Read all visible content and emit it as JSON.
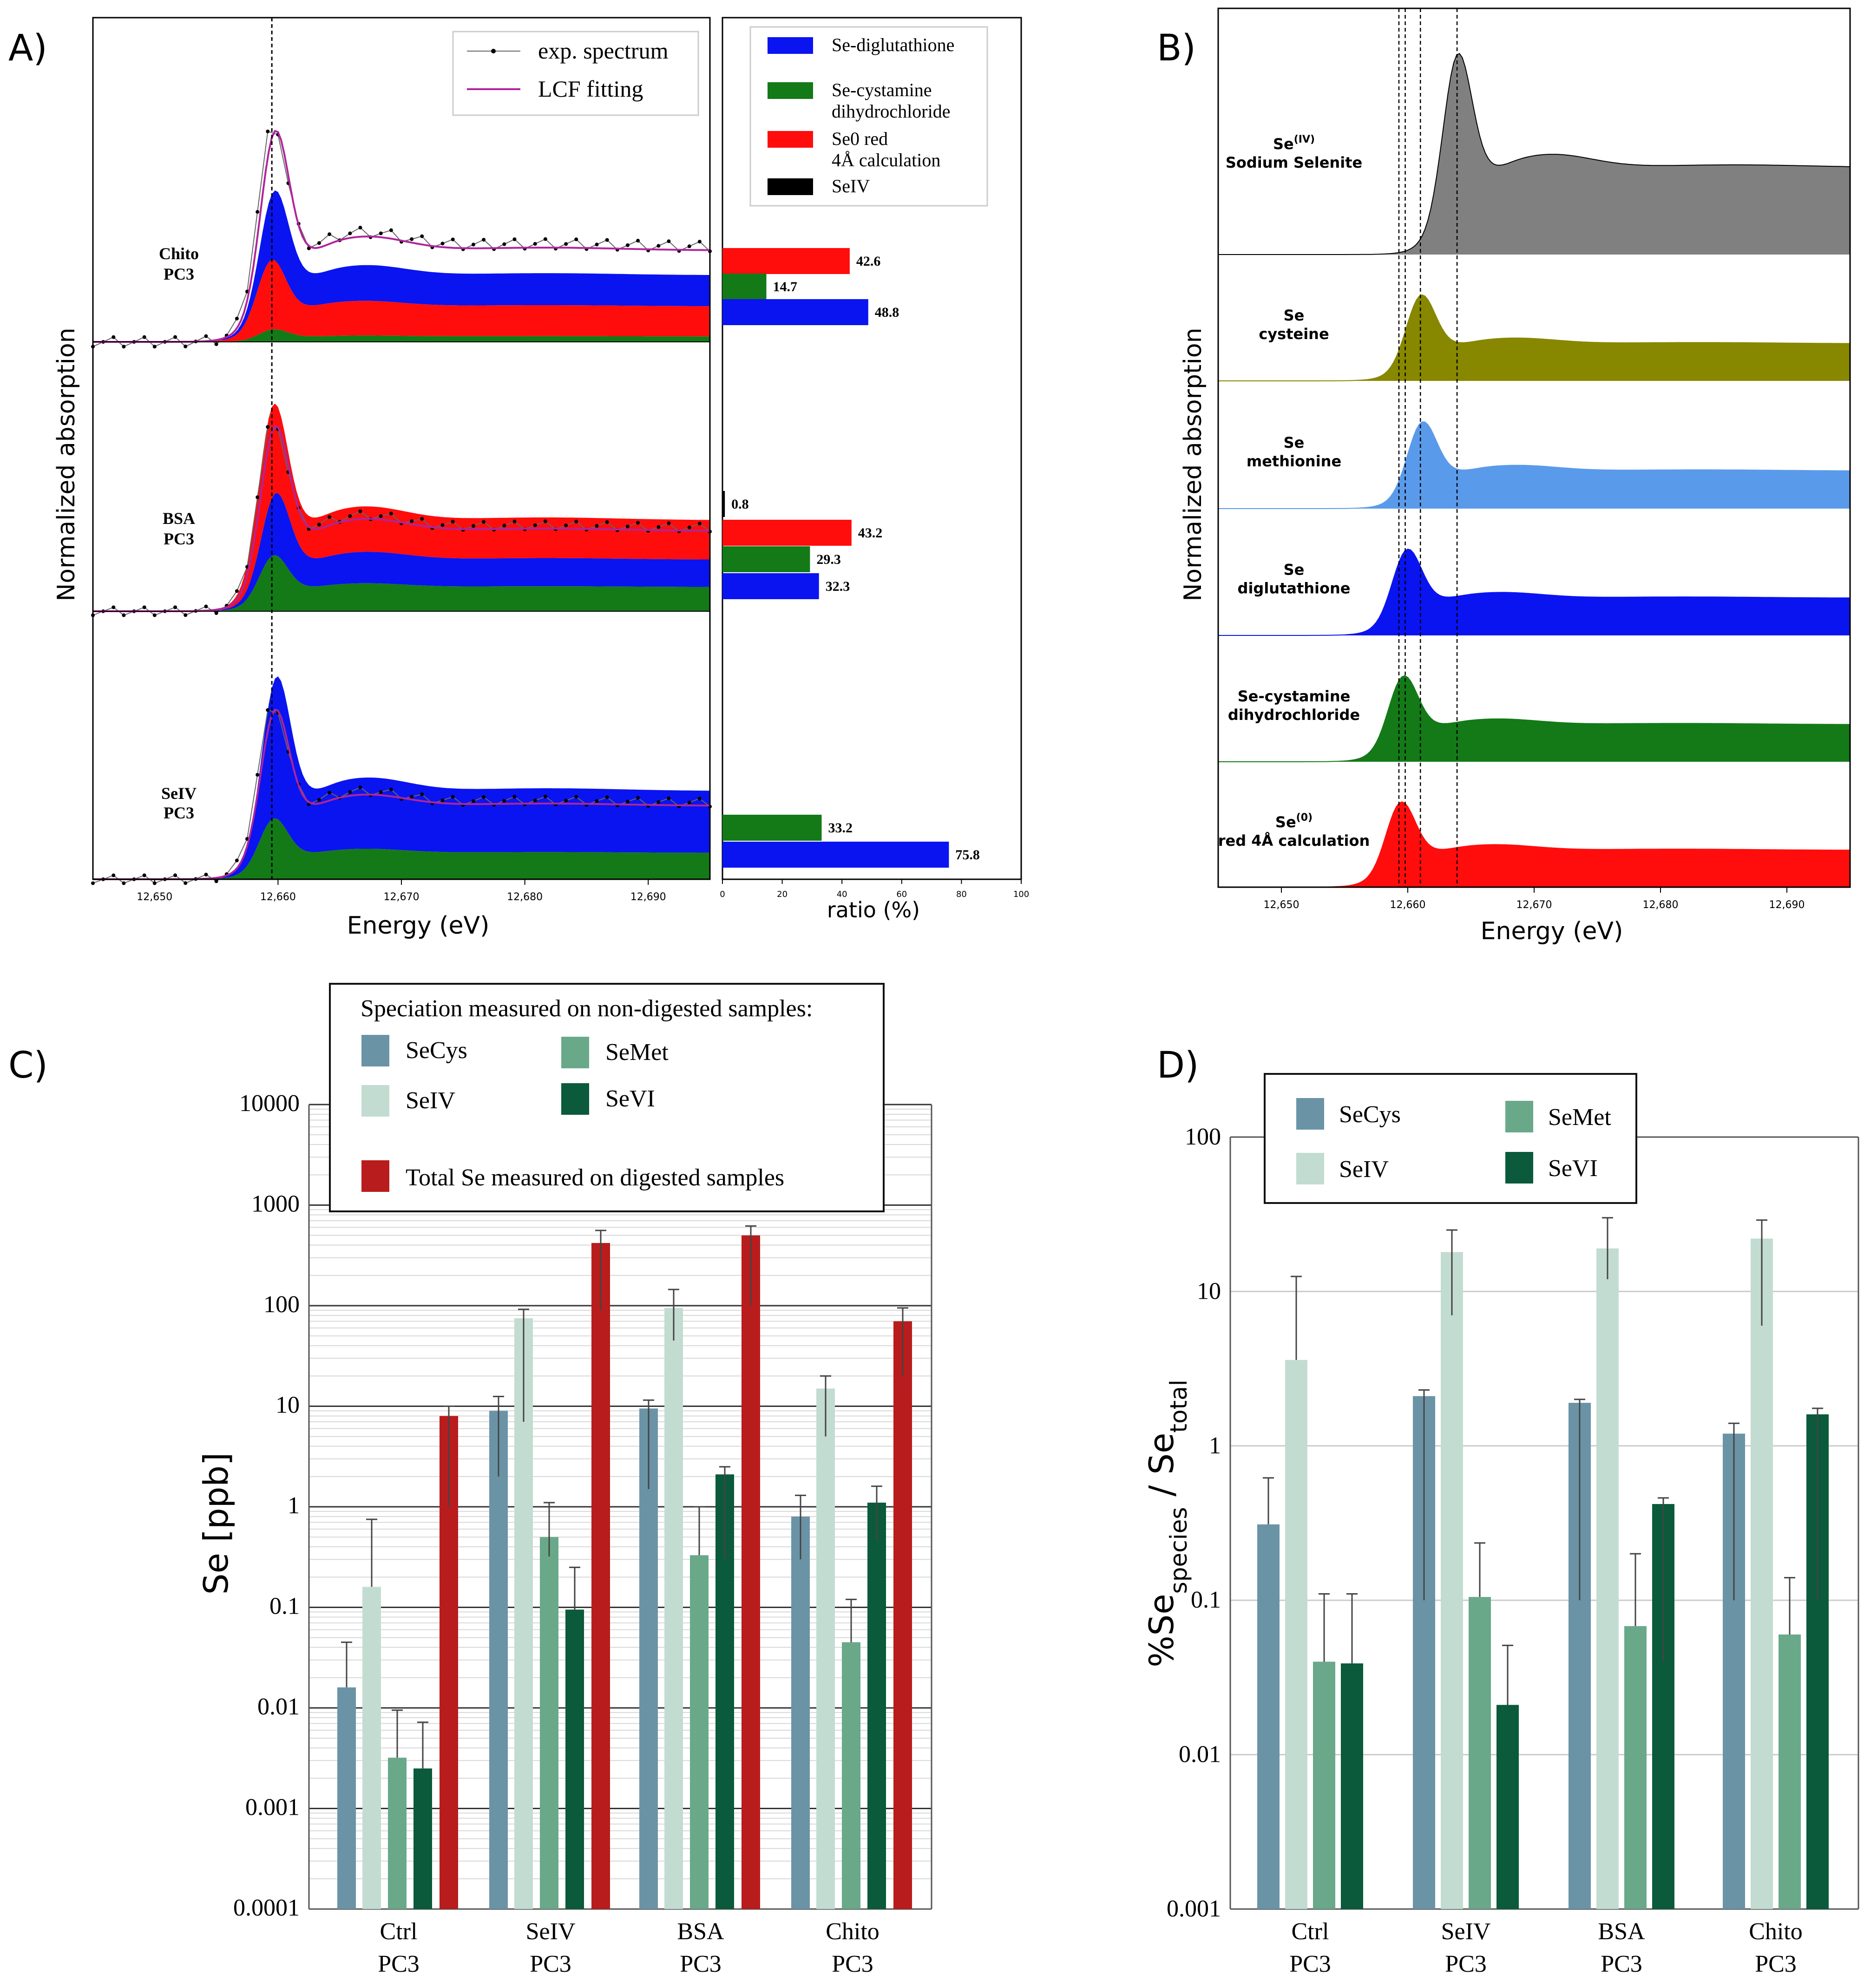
{
  "colors": {
    "blue": "#0a14f0",
    "green": "#137a17",
    "red": "#ff0d0d",
    "black": "#000000",
    "magenta": "#b0249a",
    "gray": "#808080",
    "olive": "#878700",
    "lightblue": "#5a9aea",
    "secys": "#6b93a6",
    "seiv": "#c3dcd2",
    "semet": "#69a98a",
    "sevi": "#0a5a3b",
    "total": "#b81c1c"
  },
  "chart_data": [
    {
      "panel": "A",
      "panel_label": "A)",
      "type": "area",
      "title": "",
      "xlabel": "Energy (eV)",
      "ylabel": "Normalized absorption",
      "xlim": [
        12645,
        12695
      ],
      "x_ticks": [
        12650,
        12660,
        12670,
        12680,
        12690
      ],
      "x_tick_labels": [
        "12,650",
        "12,660",
        "12,670",
        "12,680",
        "12,690"
      ],
      "vline": 12659.5,
      "legend": [
        "exp. spectrum",
        "LCF fitting"
      ],
      "samples": [
        {
          "name": "Chito",
          "name2": "PC3",
          "components": [
            "green",
            "red",
            "blue"
          ]
        },
        {
          "name": "BSA",
          "name2": "PC3",
          "components": [
            "green",
            "blue",
            "red"
          ]
        },
        {
          "name": "SeIV",
          "name2": "PC3",
          "components": [
            "green",
            "blue"
          ]
        }
      ]
    },
    {
      "panel": "A-ratio",
      "type": "bar",
      "orientation": "horizontal",
      "xlabel": "ratio (%)",
      "xlim": [
        0,
        100
      ],
      "x_ticks": [
        0,
        20,
        40,
        60,
        80,
        100
      ],
      "x_tick_labels": [
        "0",
        "20",
        "40",
        "60",
        "80",
        "100"
      ],
      "series": [
        {
          "name": "Se-diglutathione",
          "name2": "",
          "key": "blue"
        },
        {
          "name": "Se-cystamine",
          "name2": "dihydrochloride",
          "key": "green"
        },
        {
          "name": "Se0 red",
          "name2": "4Å calculation",
          "key": "red"
        },
        {
          "name": "SeIV",
          "name2": "",
          "key": "black"
        }
      ],
      "groups": [
        {
          "sample": "Chito PC3",
          "bars": [
            {
              "key": "red",
              "value": 42.6,
              "label": "42.6"
            },
            {
              "key": "green",
              "value": 14.7,
              "label": "14.7"
            },
            {
              "key": "blue",
              "value": 48.8,
              "label": "48.8"
            }
          ]
        },
        {
          "sample": "BSA PC3",
          "bars": [
            {
              "key": "black",
              "value": 0.8,
              "label": "0.8"
            },
            {
              "key": "red",
              "value": 43.2,
              "label": "43.2"
            },
            {
              "key": "green",
              "value": 29.3,
              "label": "29.3"
            },
            {
              "key": "blue",
              "value": 32.3,
              "label": "32.3"
            }
          ]
        },
        {
          "sample": "SeIV PC3",
          "bars": [
            {
              "key": "green",
              "value": 33.2,
              "label": "33.2"
            },
            {
              "key": "blue",
              "value": 75.8,
              "label": "75.8"
            }
          ]
        }
      ]
    },
    {
      "panel": "B",
      "panel_label": "B)",
      "type": "area",
      "xlabel": "Energy (eV)",
      "ylabel": "Normalized absorption",
      "xlim": [
        12645,
        12695
      ],
      "x_ticks": [
        12650,
        12660,
        12670,
        12680,
        12690
      ],
      "x_tick_labels": [
        "12,650",
        "12,660",
        "12,670",
        "12,680",
        "12,690"
      ],
      "vlines": [
        12659.3,
        12659.8,
        12661.0,
        12663.9
      ],
      "references": [
        {
          "name": "Se",
          "sup": "(IV)",
          "name2": "Sodium Selenite",
          "color": "gray",
          "edge": 12663.9
        },
        {
          "name": "Se",
          "sup": "",
          "name2": "cysteine",
          "color": "olive",
          "edge": 12661.0
        },
        {
          "name": "Se",
          "sup": "",
          "name2": "methionine",
          "color": "lightblue",
          "edge": 12661.1
        },
        {
          "name": "Se",
          "sup": "",
          "name2": "diglutathione",
          "color": "blue",
          "edge": 12659.9
        },
        {
          "name": "Se-cystamine",
          "sup": "",
          "name2": "dihydrochloride",
          "color": "green",
          "edge": 12659.6
        },
        {
          "name": "Se",
          "sup": "(0)",
          "name2": "red 4Å calculation",
          "color": "red",
          "edge": 12659.4
        }
      ]
    },
    {
      "panel": "C",
      "panel_label": "C)",
      "type": "bar",
      "scale": "log",
      "ylabel": "Se [ppb]",
      "ylim": [
        0.0001,
        10000
      ],
      "y_ticks": [
        0.0001,
        0.001,
        0.01,
        0.1,
        1,
        10,
        100,
        1000,
        10000
      ],
      "y_tick_labels": [
        "0.0001",
        "0.001",
        "0.01",
        "0.1",
        "1",
        "10",
        "100",
        "1000",
        "10000"
      ],
      "legend_title": "Speciation measured on non-digested samples:",
      "legend_extra": "Total Se measured on digested samples",
      "categories": [
        [
          "Ctrl",
          "PC3"
        ],
        [
          "SeIV",
          "PC3"
        ],
        [
          "BSA",
          "PC3"
        ],
        [
          "Chito",
          "PC3"
        ]
      ],
      "series": [
        {
          "name": "SeCys",
          "key": "secys",
          "values": [
            0.016,
            9,
            9.5,
            0.8
          ],
          "err_hi": [
            0.045,
            12.5,
            11.5,
            1.3
          ],
          "err_lo": [
            0.016,
            7,
            8,
            0.5
          ]
        },
        {
          "name": "SeIV",
          "key": "seiv",
          "values": [
            0.16,
            75,
            95,
            15
          ],
          "err_hi": [
            0.75,
            92,
            145,
            20
          ],
          "err_lo": [
            0.16,
            68,
            50,
            10
          ]
        },
        {
          "name": "SeMet",
          "key": "semet",
          "values": [
            0.0032,
            0.5,
            0.33,
            0.045
          ],
          "err_hi": [
            0.0095,
            1.1,
            1.0,
            0.12
          ],
          "err_lo": [
            0.0032,
            0.18,
            0.33,
            0.045
          ]
        },
        {
          "name": "SeVI",
          "key": "sevi",
          "values": [
            0.0025,
            0.095,
            2.1,
            1.1
          ],
          "err_hi": [
            0.0072,
            0.25,
            2.5,
            1.6
          ],
          "err_lo": [
            0.0025,
            0.095,
            1.8,
            0.65
          ]
        },
        {
          "name": "Total",
          "key": "total",
          "values": [
            8,
            420,
            500,
            70
          ],
          "err_hi": [
            10,
            560,
            620,
            95
          ],
          "err_lo": [
            7,
            330,
            400,
            50
          ]
        }
      ]
    },
    {
      "panel": "D",
      "panel_label": "D)",
      "type": "bar",
      "scale": "log",
      "ylim": [
        0.001,
        100
      ],
      "y_ticks": [
        0.001,
        0.01,
        0.1,
        1,
        10,
        100
      ],
      "y_tick_labels": [
        "0.001",
        "0.01",
        "0.1",
        "1",
        "10",
        "100"
      ],
      "categories": [
        [
          "Ctrl",
          "PC3"
        ],
        [
          "SeIV",
          "PC3"
        ],
        [
          "BSA",
          "PC3"
        ],
        [
          "Chito",
          "PC3"
        ]
      ],
      "series": [
        {
          "name": "SeCys",
          "key": "secys",
          "values": [
            0.31,
            2.1,
            1.9,
            1.2
          ],
          "err_hi": [
            0.62,
            2.3,
            2.0,
            1.4
          ],
          "err_lo": [
            0.31,
            2.0,
            1.8,
            1.1
          ]
        },
        {
          "name": "SeIV",
          "key": "seiv",
          "values": [
            3.6,
            18,
            19,
            22
          ],
          "err_hi": [
            12.5,
            25,
            30,
            29
          ],
          "err_lo": [
            3.6,
            11,
            7,
            16
          ]
        },
        {
          "name": "SeMet",
          "key": "semet",
          "values": [
            0.04,
            0.105,
            0.068,
            0.06
          ],
          "err_hi": [
            0.11,
            0.235,
            0.2,
            0.14
          ],
          "err_lo": [
            0.04,
            0.105,
            0.068,
            0.06
          ]
        },
        {
          "name": "SeVI",
          "key": "sevi",
          "values": [
            0.039,
            0.021,
            0.42,
            1.6
          ],
          "err_hi": [
            0.11,
            0.051,
            0.46,
            1.75
          ],
          "err_lo": [
            0.039,
            0.021,
            0.38,
            1.5
          ]
        }
      ]
    }
  ],
  "d_ylabel": {
    "pre": "%Se",
    "sub1": "species",
    "mid": " / Se",
    "sub2": "total"
  }
}
